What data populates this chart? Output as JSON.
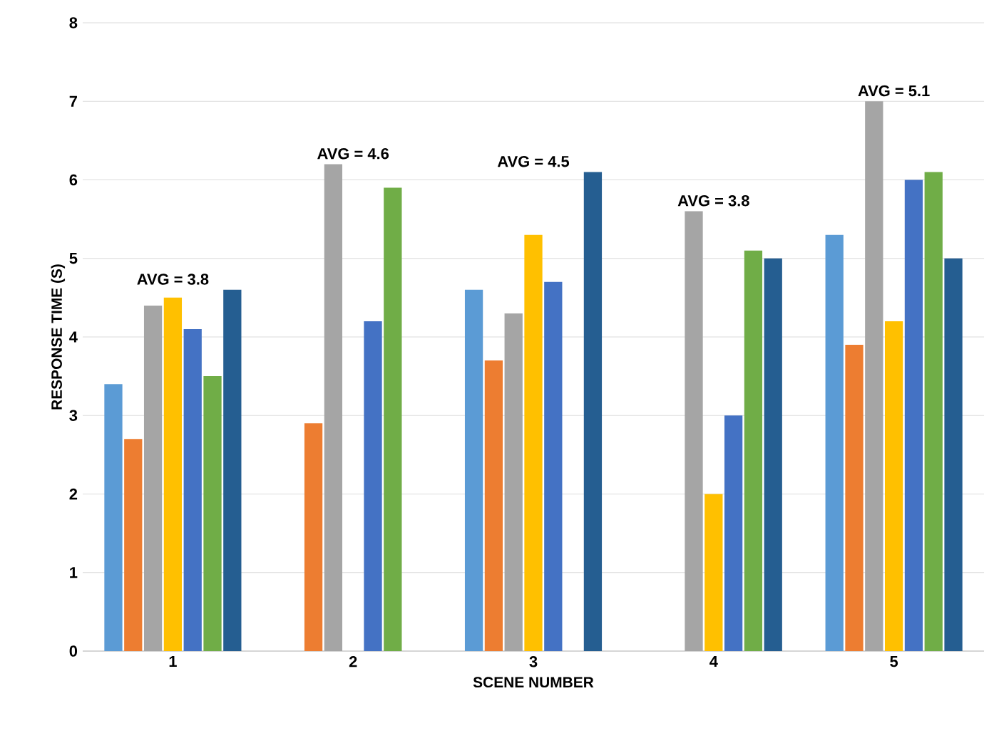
{
  "chart_data": {
    "type": "bar",
    "xlabel": "SCENE NUMBER",
    "ylabel": "RESPONSE TIME (S)",
    "categories": [
      "1",
      "2",
      "3",
      "4",
      "5"
    ],
    "series": [
      {
        "color": "#5b9bd5",
        "values": [
          3.4,
          null,
          4.6,
          null,
          5.3
        ]
      },
      {
        "color": "#ed7d31",
        "values": [
          2.7,
          2.9,
          3.7,
          null,
          3.9
        ]
      },
      {
        "color": "#a5a5a5",
        "values": [
          4.4,
          6.2,
          4.3,
          5.6,
          7.0
        ]
      },
      {
        "color": "#ffc000",
        "values": [
          4.5,
          null,
          5.3,
          2.0,
          4.2
        ]
      },
      {
        "color": "#4472c4",
        "values": [
          4.1,
          4.2,
          4.7,
          3.0,
          6.0
        ]
      },
      {
        "color": "#70ad47",
        "values": [
          3.5,
          5.9,
          null,
          5.1,
          6.1
        ]
      },
      {
        "color": "#255e91",
        "values": [
          4.6,
          null,
          6.1,
          5.0,
          5.0
        ]
      }
    ],
    "ylim": [
      0,
      8
    ],
    "yticks": [
      0,
      1,
      2,
      3,
      4,
      5,
      6,
      7,
      8
    ],
    "grid": "y",
    "annotations": [
      "AVG = 3.8",
      "AVG = 4.6",
      "AVG = 4.5",
      "AVG = 3.8",
      "AVG = 5.1"
    ]
  }
}
